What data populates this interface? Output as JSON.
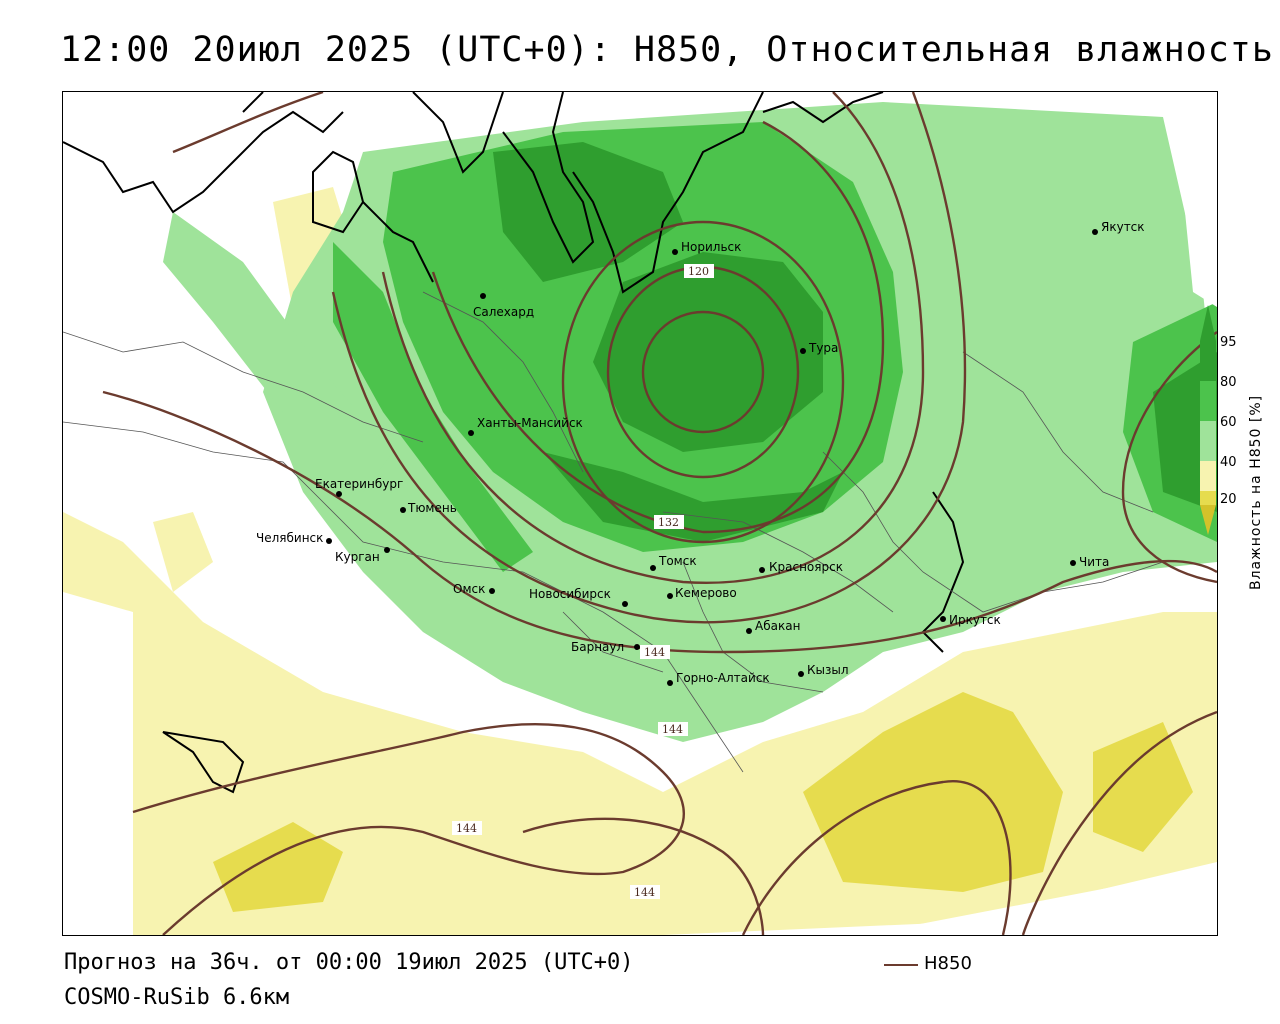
{
  "header": {
    "title": "12:00 20июл 2025 (UTC+0): H850, Относительная влажность"
  },
  "footer": {
    "forecast": "Прогноз на 36ч. от 00:00 19июл 2025 (UTC+0)",
    "model": "COSMO-RuSib 6.6км"
  },
  "legend": {
    "contour_label": "H850",
    "contour_color": "#6b3b2e"
  },
  "colorbar": {
    "title": "Влажность на H850 [%]",
    "ticks": [
      "95",
      "80",
      "60",
      "40",
      "20"
    ],
    "colors": {
      "c95": "#2f9e2f",
      "c80": "#4cc34c",
      "c60": "#9fe39a",
      "c40": "#ffffff",
      "c20": "#f7f3b0",
      "c10": "#e6dc4e",
      "c0": "#d4c22a"
    }
  },
  "cities": [
    {
      "name": "Норильск"
    },
    {
      "name": "Салехард"
    },
    {
      "name": "Тура"
    },
    {
      "name": "Якутск"
    },
    {
      "name": "Ханты-Мансийск"
    },
    {
      "name": "Екатеринбург"
    },
    {
      "name": "Тюмень"
    },
    {
      "name": "Челябинск"
    },
    {
      "name": "Курган"
    },
    {
      "name": "Омск"
    },
    {
      "name": "Новосибирск"
    },
    {
      "name": "Томск"
    },
    {
      "name": "Кемерово"
    },
    {
      "name": "Красноярск"
    },
    {
      "name": "Абакан"
    },
    {
      "name": "Барнаул"
    },
    {
      "name": "Горно-Алтайск"
    },
    {
      "name": "Кызыл"
    },
    {
      "name": "Иркутск"
    },
    {
      "name": "Чита"
    }
  ],
  "contour_labels": [
    "120",
    "132",
    "144",
    "144",
    "144",
    "144"
  ]
}
